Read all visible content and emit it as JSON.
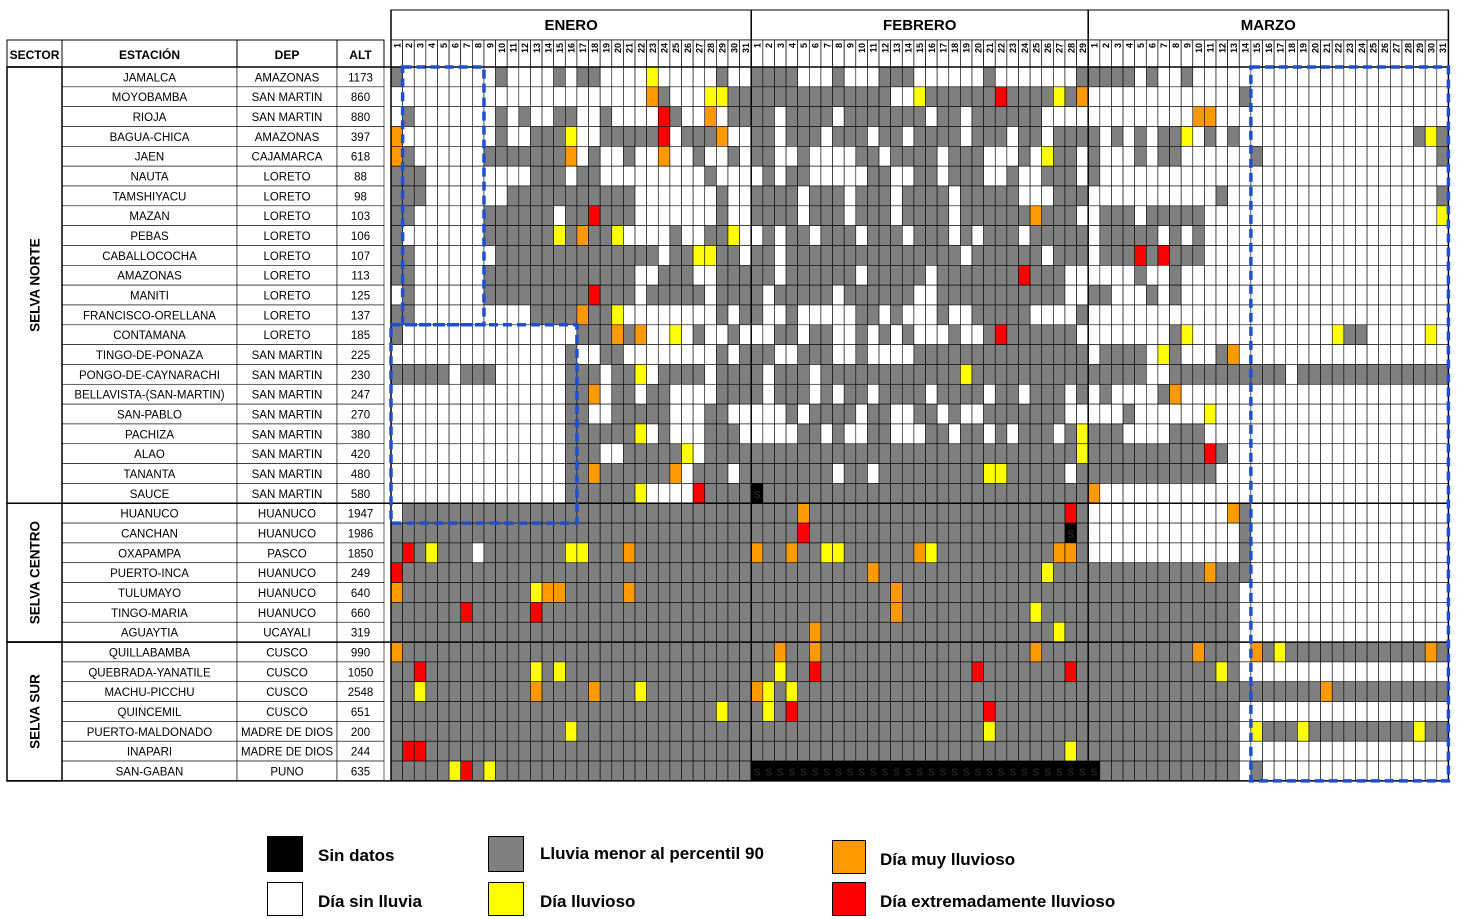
{
  "chart_data": {
    "type": "heatmap",
    "columns": [
      "SECTOR",
      "ESTACIÓN",
      "DEP",
      "ALT"
    ],
    "months": [
      {
        "name": "ENERO",
        "days": 31
      },
      {
        "name": "FEBRERO",
        "days": 29
      },
      {
        "name": "MARZO",
        "days": 31
      }
    ],
    "categories": {
      "W": "Día sin lluvia",
      "G": "Lluvia menor al percentil 90",
      "Y": "Día lluvioso",
      "O": "Día muy lluvioso",
      "R": "Día extremadamente lluvioso",
      "K": "Sin datos"
    },
    "colors": {
      "W": "#ffffff",
      "G": "#7f7f7f",
      "Y": "#ffff00",
      "O": "#ff9900",
      "R": "#ff0000",
      "K": "#000000",
      "grid": "#000000",
      "highlight": "#1f4fd1"
    },
    "sectors": [
      {
        "name": "SELVA NORTE",
        "count": 22
      },
      {
        "name": "SELVA CENTRO",
        "count": 7
      },
      {
        "name": "SELVA SUR",
        "count": 7
      }
    ],
    "stations": [
      {
        "name": "JAMALCA",
        "dep": "AMAZONAS",
        "alt": "1173"
      },
      {
        "name": "MOYOBAMBA",
        "dep": "SAN MARTIN",
        "alt": "860"
      },
      {
        "name": "RIOJA",
        "dep": "SAN MARTIN",
        "alt": "880"
      },
      {
        "name": "BAGUA-CHICA",
        "dep": "AMAZONAS",
        "alt": "397"
      },
      {
        "name": "JAEN",
        "dep": "CAJAMARCA",
        "alt": "618"
      },
      {
        "name": "NAUTA",
        "dep": "LORETO",
        "alt": "88"
      },
      {
        "name": "TAMSHIYACU",
        "dep": "LORETO",
        "alt": "98"
      },
      {
        "name": "MAZAN",
        "dep": "LORETO",
        "alt": "103"
      },
      {
        "name": "PEBAS",
        "dep": "LORETO",
        "alt": "106"
      },
      {
        "name": "CABALLOCOCHA",
        "dep": "LORETO",
        "alt": "107"
      },
      {
        "name": "AMAZONAS",
        "dep": "LORETO",
        "alt": "113"
      },
      {
        "name": "MANITI",
        "dep": "LORETO",
        "alt": "125"
      },
      {
        "name": "FRANCISCO-ORELLANA",
        "dep": "LORETO",
        "alt": "137"
      },
      {
        "name": "CONTAMANA",
        "dep": "LORETO",
        "alt": "185"
      },
      {
        "name": "TINGO-DE-PONAZA",
        "dep": "SAN MARTIN",
        "alt": "225"
      },
      {
        "name": "PONGO-DE-CAYNARACHI",
        "dep": "SAN MARTIN",
        "alt": "230"
      },
      {
        "name": "BELLAVISTA-(SAN-MARTIN)",
        "dep": "SAN MARTIN",
        "alt": "247"
      },
      {
        "name": "SAN-PABLO",
        "dep": "SAN MARTIN",
        "alt": "270"
      },
      {
        "name": "PACHIZA",
        "dep": "SAN MARTIN",
        "alt": "380"
      },
      {
        "name": "ALAO",
        "dep": "SAN MARTIN",
        "alt": "420"
      },
      {
        "name": "TANANTA",
        "dep": "SAN MARTIN",
        "alt": "480"
      },
      {
        "name": "SAUCE",
        "dep": "SAN MARTIN",
        "alt": "580"
      },
      {
        "name": "HUANUCO",
        "dep": "HUANUCO",
        "alt": "1947"
      },
      {
        "name": "CANCHAN",
        "dep": "HUANUCO",
        "alt": "1986"
      },
      {
        "name": "OXAPAMPA",
        "dep": "PASCO",
        "alt": "1850"
      },
      {
        "name": "PUERTO-INCA",
        "dep": "HUANUCO",
        "alt": "249"
      },
      {
        "name": "TULUMAYO",
        "dep": "HUANUCO",
        "alt": "640"
      },
      {
        "name": "TINGO-MARIA",
        "dep": "HUANUCO",
        "alt": "660"
      },
      {
        "name": "AGUAYTIA",
        "dep": "UCAYALI",
        "alt": "319"
      },
      {
        "name": "QUILLABAMBA",
        "dep": "CUSCO",
        "alt": "990"
      },
      {
        "name": "QUEBRADA-YANATILE",
        "dep": "CUSCO",
        "alt": "1050"
      },
      {
        "name": "MACHU-PICCHU",
        "dep": "CUSCO",
        "alt": "2548"
      },
      {
        "name": "QUINCEMIL",
        "dep": "CUSCO",
        "alt": "651"
      },
      {
        "name": "PUERTO-MALDONADO",
        "dep": "MADRE DE DIOS",
        "alt": "200"
      },
      {
        "name": "INAPARI",
        "dep": "MADRE DE DIOS",
        "alt": "244"
      },
      {
        "name": "SAN-GABAN",
        "dep": "PUNO",
        "alt": "635"
      }
    ],
    "daily": [
      "GWWWWWWWWGWWWWGWGGWWWWYWWWWWGWWGGGGWWWGWWWGGGWWWWWWGWWWWWWWGGGGGWGWWGWWWWWWWWWWWWWWWWWWWWWW",
      "WWWWWWWWWWWWWWWWWWWWWWOGWWWYYGGGGGGGGGGGGGGWWYGGGGGGRGGGGYGOWWWWWWWWWWWWWGWWWWWWWWWWWWWWWWW",
      "WGWWWWWWWGWGWWGGWWGWWWWRGWWOWGGGGWGGGGWGGGGGGGWGGWGGGGGGWWWWWWWWWWWWWOOWWWWWWWWWWWWWWWWWWWW",
      "OWWWWWWWWGWWGGGYWWGGGGGRWGGGOWWGGWGGGWGGGWGGWGGGGWGGGWGGWGGGGWGWGWGGYWGWGWWWWWWWWWWWWWWWGYG",
      "OGWWWWWWGGGGGGGOWGWWGWWOWWGWWGWGGWWGWWWWGGWGGGGWGGGWWWGWYGGWGWWWGWGGWWWWWWGWWWWWWWWWWWWWWWG",
      "GGGWWWWWWWWWGGGWGGWWWWWWWWWGWWWWGWGGWWWWWGGWWGGWGGGWWGWWGGGWGWWWWWWWWWWWWWWWWWWWWWWWWWWWWWW",
      "GGGWWWWWWWGGGGGGGGGGGWWWWWWWGWWGGGGWGGGWGGGWGGGGWGGGGGWWWGGGWWWWWWWWWWWGWWWWWWWWWWWWWWWWWWGGG",
      "GGWWWWWWGGGGGGWGGRGGGWWWWWWWGWWGGGGWGGGWGGGWGGGGWGGGGGGOGGGWWGGGWGGGGGWWWWWWWWWWWWWWWWWWWWYG",
      "GWWWWWWWGGGGGGYGOGGYWWWWGWWGGYWWGWGGWGGGWGGGWGGGWGWGGGWGGGGGWGGGGGWGWGWWWWWWWWWWWWWWWWWWWWWW",
      "GGWWWWWWWGGGGGGGGGGGGGGWGGYYGGWGGWGGGGGGGGGGGGGGGWGGGGGGWGGGWGGGRGRGGGWWWWWWWWWWWWWWWWWWWWWW",
      "GGWWWWWWGGGGGGGGGGGGGWWGGGWWGGGGGWGGGGGGWGGGGGWGGGGGGGRGGGWWWWWWGWWGWWWWWWWWWWWWWWWWWWWWWWWW",
      "WGWWWWWWGGGGGGGGGRGGGWGGGGGWGGGGWGGGGGWGGGGGGWWGGGGGGGGGGGWWGGWWWGWGWWWWWWWWWWWWWWWWWWWWWWWW",
      "GGWWWWWWWWWWGGGGOGGYWWWWWWWWGWGGWWGWWWWWGGWGWWWGWWGGGGGWWWWGWWWWWWWWWWWWWWWWWWWWWWWWWWWWWWW",
      "GWWWWWWWWWWWWWWWGGGOGOWWYWGWWGWWWGGWGGWWGWGWGWWWGWWGRGGGGGGWWWWWWWWGYWWWWWWWWWWWWYGGWWWWWYWW",
      "WWWWWWWWWWWWWWWGWWGGWWWWWWWWGWGGGWWGGGWWGWWWWGGGGGGGGGGGGGGGWGGGGWYGWWWGOWWWWWWWWWWWWWWWWWWW",
      "GGGGGWGGGWWWWWWGGGWGGYWGGGGWGGGGWGGGWGGGGGGGGGGGGYGGGGGGGGGGGGGGGWWGGGGGGGGGGWGGGGGGGGGGGGGGG",
      "WWWWWWWWWWWWWWWGGOWGGWGGWWWWGGGGWGGGWGWGGWGGGGWGGGGWGGWGGGWGWGWWWWGOWWWWWWWWWWWWWWWWWWWWWWWW",
      "WWWWWWWWWWWWWWWGGWWGGGGGWWWGGWWWWWGWGGGGWGGWWGGWGWWGGGGGGGWWWWWGWWWWWWYWWWWWWWWWWWWWWWWWWWWW",
      "WWWWWWWWWWWWWWWGGGGGGYWGWWWGGGWWWWWGGWGWWGGWWWGGWGGWGWGGGWGYGGGWWWWGGGWWWWWWWWWWWWWWWWWWWWWWW",
      "WWWWWWWWWWWWWWWGGGWWGGGGGYWGGGGGGGGGGGGGGGGGGGGGGGGGGGGGGGGYGGGGGGGGGGRGWWWWWWWWWWWWWWWWWWWWW",
      "WWWWWWWWWWWWWWWGGOGGGGGGOWGGGWGGGGGGGGWGGWGGGGGGGGGYYGGGGGWGGGGGGGGGGGGWWWWWWWWWWWWWWWWWWWWW",
      "WWWWWWWWWWWWWWWGGGGGGYWWWWRGGGGKGGGGGGGGGGGGGGGGGGGGGGGGGGGGOWWWWWWWWWWWWWWWWWWWWWWWWWWWWWWW",
      "WGGGGGGGGGGGGGGGGGGGGGGGGGGGGGGGGGGOGGGGGGGGGGGGGGGGGGGGGGRGWWWWWWWWWWWWOGWWWWWWWWWWWWWWWWW",
      "GGGGGGGGGGGGGGGGGGGGGGGGGGGGGGGGGGGRGGGGGGGGGGGGGGGGGGGGGGKGWWWWWWWWWWWWWGWWWWWWWWWWWWWWWWW",
      "GRGYGGGWGGGGGGGYYGGGOGGGGGGGGGGOGGOGGYYGGGGGGOYGGGGGGGGGGOOGWWWWWWWWWWWWWGWWWWWWWWWWWWWWWWW",
      "RGGGGGGGGGGGGGGGGGGGGGGGGGGGGGGGGGGGGGGGGOGGGGGGGGGGGGGGYGGGGGGGGGGGGGOGGGWWWWWWWWWWWWWWWWWW",
      "OGGGGGGGGGGGYOOGGGGGOGGGGGGGGGGGGGGGGGGGGGGOGGGGGGGGGGGGGGGGGGGGGGGGGGGGGWWWWWWWWWWWWWWWWWWW",
      "GGGGGGRGGGGGRGGGGGGGGGGGGGGGGGGGGGGGGGGGGGGOGGGGGGGGGGGYGGGGGGGGGGGGGGGGGWWWWWWWWWWWWWWWWWWW",
      "GGGGGGGGGGGGGGGGGGGGGGGGGGGGGGGGGGGGOGGGGGGGGGGGGGGGGGGGGYGGGGGGGGGGGGGGGWWWWWWWWWWWWWWWWWWW",
      "OGGGGGGGGGGGGGGGGGGGGGGGGGGGGGGGGOGGOGGGGGGGGGGGGGGGGGGOGGGGGGGGGGGGGOGGGWOGYGGGGGGGGGGGGOGG",
      "GGRGGGGGGGGGYGYGGGGGGGGGGGGGGGGGGYGGRGGGGGGGGGGGGGRGGGGGGGRGGGGGGGGGGGGYGWWWWWWWWWWWWWWWWWWW",
      "GGYGGGGGGGGGOGGGGOGGGYGGGGGGGGGOYGYGGGGGGGGGGGGGGGGGGGGGGGGGGGGGGGGGGGGGGGGGGGGGOGGGGGGGGGGOG",
      "GGGGGGGGGGGGGGGGGGGGGGGGGGGGYGGGYGRGGGGGGGGGGGGGGGGRGGGGGGGGGGGGGGGGGGGGGWWWWWWWWWWWWWWWWWWW",
      "GGGGGGGGGGGGGGGYGGGGGGGGGGGGGGGGGGGGGGGGGGGGGGGGGGGYGGGGGGGGGGGGGGGGGGGGGWYGGGYGGGGGGGGGYGGG",
      "GRRGGGGGGGGGGGGGGGGGGGGGGGGGGGGGGGGGGGGGGGGGGGGGGGGGGGGGGGYGGGGGGGGGGGGGGWWWWWWWWWWWWWWWWWWW",
      "GGGGGYRGYGGGGGGGGGGGGGGGGGGGGGGKKKKKKKKKKKKKKKKKKKKKKKKKKKKKKGGGGGGGGGGGGWGWWWWWWWWWWWWWWWWWW"
    ],
    "highlight_boxes": [
      {
        "rows": [
          0,
          12
        ],
        "days_from": 2,
        "days_to": 8,
        "month": "ENERO"
      },
      {
        "rows": [
          13,
          22
        ],
        "days_from": 1,
        "days_to": 16,
        "month": "ENERO"
      },
      {
        "rows": [
          0,
          35
        ],
        "days_from": 15,
        "days_to": 31,
        "month": "MARZO"
      }
    ],
    "legend": [
      {
        "key": "K",
        "label": "Sin datos"
      },
      {
        "key": "W",
        "label": "Día sin lluvia"
      },
      {
        "key": "G",
        "label": "Lluvia menor al percentil 90"
      },
      {
        "key": "Y",
        "label": "Día lluvioso"
      },
      {
        "key": "O",
        "label": "Día muy lluvioso"
      },
      {
        "key": "R",
        "label": "Día extremadamente lluvioso"
      }
    ],
    "no_data_cell_mark": "S"
  }
}
